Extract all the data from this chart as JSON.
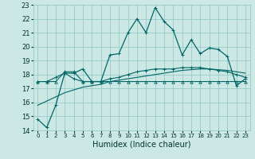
{
  "title": "",
  "xlabel": "Humidex (Indice chaleur)",
  "bg_color": "#cce8e4",
  "grid_color": "#99ccc8",
  "line_color": "#006666",
  "xlim": [
    -0.5,
    23.5
  ],
  "ylim": [
    14,
    23
  ],
  "xticks": [
    0,
    1,
    2,
    3,
    4,
    5,
    6,
    7,
    8,
    9,
    10,
    11,
    12,
    13,
    14,
    15,
    16,
    17,
    18,
    19,
    20,
    21,
    22,
    23
  ],
  "yticks": [
    14,
    15,
    16,
    17,
    18,
    19,
    20,
    21,
    22,
    23
  ],
  "main_line_x": [
    0,
    1,
    2,
    3,
    4,
    5,
    6,
    7,
    8,
    9,
    10,
    11,
    12,
    13,
    14,
    15,
    16,
    17,
    18,
    19,
    20,
    21,
    22,
    23
  ],
  "main_line_y": [
    14.8,
    14.2,
    15.8,
    18.1,
    18.1,
    18.4,
    17.5,
    17.5,
    19.4,
    19.5,
    21.0,
    22.0,
    21.0,
    22.8,
    21.8,
    21.2,
    19.4,
    20.5,
    19.5,
    19.9,
    19.8,
    19.3,
    17.2,
    17.7
  ],
  "line2_x": [
    0,
    1,
    2,
    3,
    4,
    5,
    6,
    7,
    8,
    9,
    10,
    11,
    12,
    13,
    14,
    15,
    16,
    17,
    18,
    19,
    20,
    21,
    22,
    23
  ],
  "line2_y": [
    17.5,
    17.5,
    17.8,
    18.1,
    17.7,
    17.5,
    17.5,
    17.5,
    17.7,
    17.8,
    18.0,
    18.2,
    18.3,
    18.4,
    18.4,
    18.4,
    18.5,
    18.5,
    18.5,
    18.4,
    18.3,
    18.2,
    18.0,
    17.8
  ],
  "line3_x": [
    0,
    1,
    2,
    3,
    4,
    5,
    6,
    7,
    8,
    9,
    10,
    11,
    12,
    13,
    14,
    15,
    16,
    17,
    18,
    19,
    20,
    21,
    22,
    23
  ],
  "line3_y": [
    15.8,
    16.1,
    16.4,
    16.7,
    16.9,
    17.1,
    17.2,
    17.3,
    17.5,
    17.6,
    17.7,
    17.8,
    17.9,
    18.0,
    18.1,
    18.2,
    18.3,
    18.35,
    18.4,
    18.4,
    18.35,
    18.3,
    18.2,
    18.1
  ],
  "line4_x": [
    0,
    1,
    2,
    3,
    4,
    5,
    6,
    7,
    8,
    9,
    10,
    11,
    12,
    13,
    14,
    15,
    16,
    17,
    18,
    19,
    20,
    21,
    22,
    23
  ],
  "line4_y": [
    17.5,
    17.5,
    17.5,
    18.2,
    18.2,
    17.5,
    17.5,
    17.5,
    17.5,
    17.5,
    17.5,
    17.5,
    17.5,
    17.5,
    17.5,
    17.5,
    17.5,
    17.5,
    17.5,
    17.5,
    17.5,
    17.5,
    17.5,
    17.5
  ]
}
